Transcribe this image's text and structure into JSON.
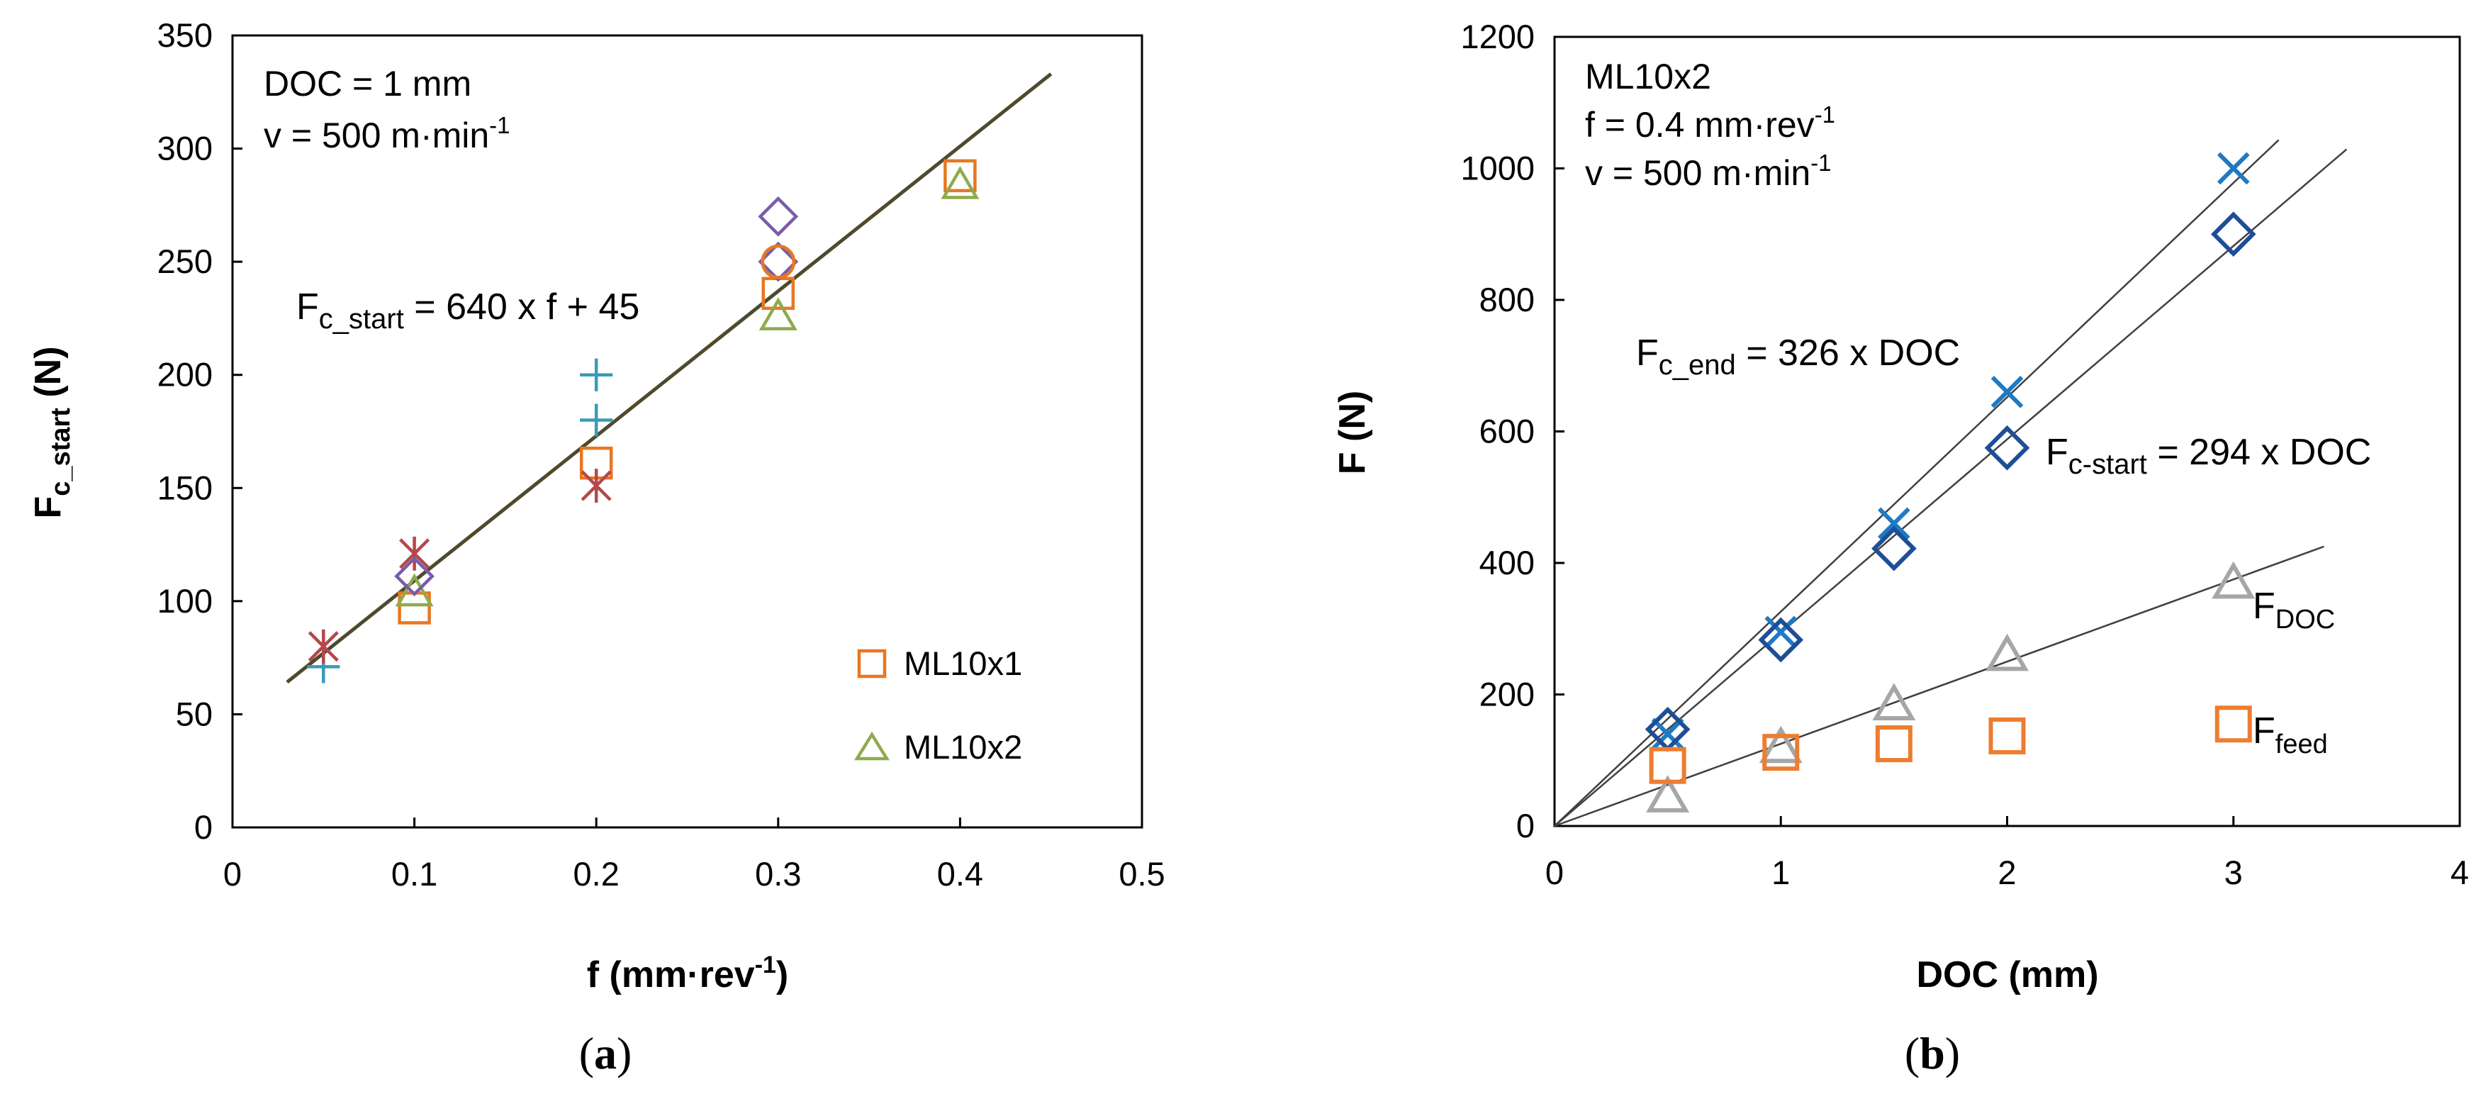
{
  "chart_data": [
    {
      "id": "a",
      "type": "scatter",
      "subfigure_label": "a",
      "xlabel": "f (mm·rev",
      "xlabel_sup": "-1",
      "xlabel_end": ")",
      "ylabel_main": "F",
      "ylabel_sub": "c_start",
      "ylabel_end": " (N)",
      "xlim": [
        0,
        0.5
      ],
      "ylim": [
        0,
        350
      ],
      "xticks": [
        "0",
        "0.1",
        "0.2",
        "0.3",
        "0.4",
        "0.5"
      ],
      "yticks": [
        "0",
        "50",
        "100",
        "150",
        "200",
        "250",
        "300",
        "350"
      ],
      "annotation": {
        "line1": "DOC = 1 mm",
        "line2_main": "v = 500 m·min",
        "line2_sup": "-1"
      },
      "equation": {
        "main": "F",
        "sub": "c_start",
        "rest": " = 640 x f + 45"
      },
      "fit_line": {
        "slope": 640,
        "intercept": 45,
        "x_range": [
          0.03,
          0.45
        ],
        "color": "#4f4a2c"
      },
      "series": [
        {
          "name": "ML10x1",
          "marker": "square",
          "color": "#e87722",
          "points": [
            [
              0.1,
              97
            ],
            [
              0.2,
              161
            ],
            [
              0.3,
              236
            ],
            [
              0.4,
              288
            ]
          ]
        },
        {
          "name": "ML10x2",
          "marker": "triangle",
          "color": "#8faa4c",
          "points": [
            [
              0.1,
              104
            ],
            [
              0.3,
              226
            ],
            [
              0.4,
              284
            ]
          ]
        },
        {
          "name": "",
          "marker": "plus",
          "color": "#3a9ab8",
          "points": [
            [
              0.05,
              71
            ],
            [
              0.2,
              200
            ],
            [
              0.2,
              180
            ]
          ]
        },
        {
          "name": "",
          "marker": "star",
          "color": "#b5474b",
          "points": [
            [
              0.05,
              80
            ],
            [
              0.1,
              121
            ],
            [
              0.2,
              151
            ]
          ]
        },
        {
          "name": "",
          "marker": "diamond",
          "color": "#7a5ca8",
          "points": [
            [
              0.1,
              111
            ],
            [
              0.3,
              270
            ],
            [
              0.3,
              250
            ]
          ]
        },
        {
          "name": "",
          "marker": "circle",
          "color": "#e87722",
          "points": [
            [
              0.3,
              250
            ]
          ]
        }
      ],
      "legend": [
        {
          "label": "ML10x1",
          "marker": "square",
          "color": "#e87722"
        },
        {
          "label": "ML10x2",
          "marker": "triangle",
          "color": "#8faa4c"
        }
      ]
    },
    {
      "id": "b",
      "type": "scatter",
      "subfigure_label": "b",
      "xlabel": "DOC (mm)",
      "ylabel": "F (N)",
      "xlim": [
        0,
        4
      ],
      "ylim": [
        0,
        1200
      ],
      "xticks": [
        "0",
        "1",
        "2",
        "3",
        "4"
      ],
      "yticks": [
        "0",
        "200",
        "400",
        "600",
        "800",
        "1000",
        "1200"
      ],
      "annotation": {
        "line1": "ML10x2",
        "line2_main": "f = 0.4 mm·rev",
        "line2_sup": "-1",
        "line3_main": "v = 500 m·min",
        "line3_sup": "-1"
      },
      "equations": [
        {
          "main": "F",
          "sub": "c_end",
          "rest": " = 326 x DOC"
        },
        {
          "main": "F",
          "sub": "c-start",
          "rest": " = 294 x DOC"
        }
      ],
      "fit_lines": [
        {
          "slope": 326,
          "intercept": 0,
          "x_range": [
            0,
            3.2
          ],
          "color": "#404040"
        },
        {
          "slope": 294,
          "intercept": 0,
          "x_range": [
            0,
            3.5
          ],
          "color": "#404040"
        },
        {
          "slope": 125,
          "intercept": 0,
          "x_range": [
            0,
            3.4
          ],
          "color": "#404040"
        }
      ],
      "series": [
        {
          "name": "F_c_end",
          "marker": "x",
          "color": "#1f7ac4",
          "points": [
            [
              0.5,
              140
            ],
            [
              1,
              295
            ],
            [
              1.5,
              460
            ],
            [
              2,
              660
            ],
            [
              3,
              1000
            ]
          ]
        },
        {
          "name": "F_c-start",
          "marker": "diamond",
          "color": "#1f4e96",
          "points": [
            [
              0.5,
              147
            ],
            [
              1,
              283
            ],
            [
              1.5,
              422
            ],
            [
              2,
              575
            ],
            [
              3,
              900
            ]
          ]
        },
        {
          "name": "F_DOC",
          "marker": "triangle",
          "color": "#a6a6a6",
          "points": [
            [
              0.5,
              45
            ],
            [
              1,
              120
            ],
            [
              1.5,
              185
            ],
            [
              2,
              260
            ],
            [
              3,
              370
            ]
          ]
        },
        {
          "name": "F_feed",
          "marker": "square",
          "color": "#ed7d31",
          "points": [
            [
              0.5,
              92
            ],
            [
              1,
              112
            ],
            [
              1.5,
              125
            ],
            [
              2,
              137
            ],
            [
              3,
              155
            ]
          ]
        }
      ],
      "series_labels": [
        {
          "main": "F",
          "sub": "DOC"
        },
        {
          "main": "F",
          "sub": "feed"
        }
      ]
    }
  ]
}
